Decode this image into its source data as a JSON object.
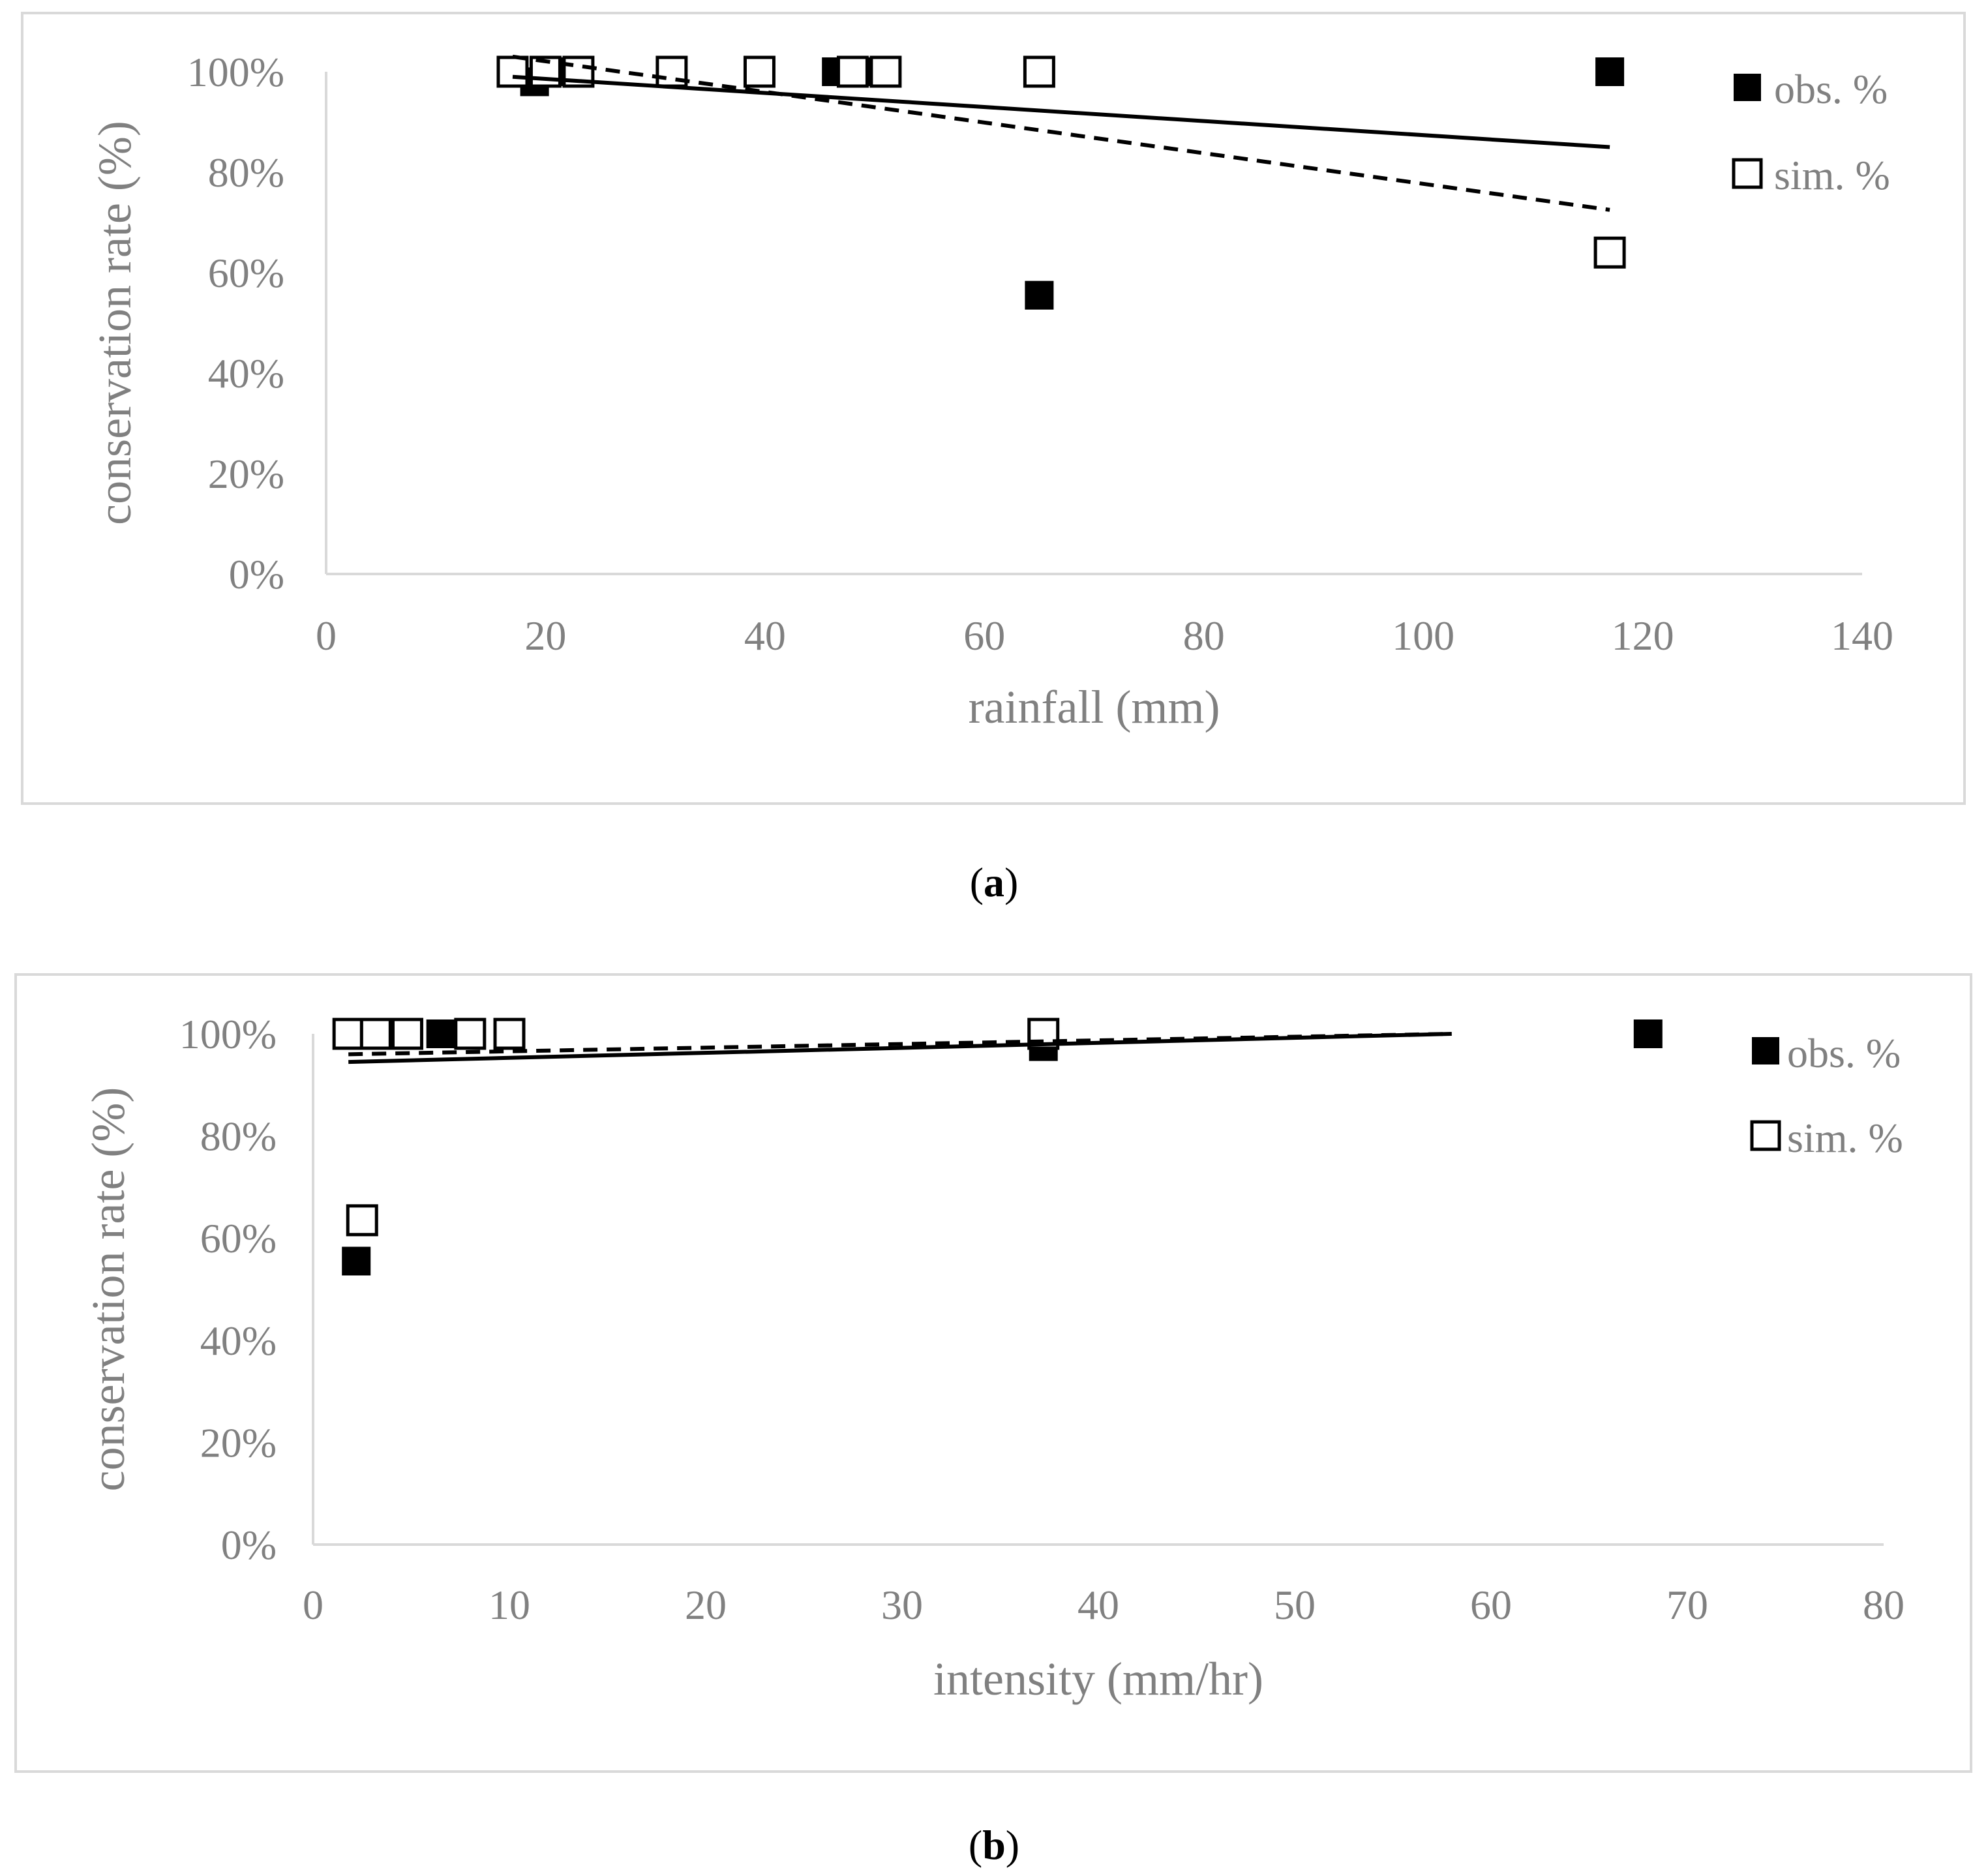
{
  "chart_data": [
    {
      "type": "scatter",
      "caption": "a",
      "xlabel": "rainfall (mm)",
      "ylabel": "conservation rate (%)",
      "xlim": [
        0,
        140
      ],
      "ylim": [
        0,
        100
      ],
      "xticks": [
        "0",
        "20",
        "40",
        "60",
        "80",
        "100",
        "120",
        "140"
      ],
      "yticks": [
        "0%",
        "20%",
        "40%",
        "60%",
        "80%",
        "100%"
      ],
      "legend_position": "right",
      "series": [
        {
          "name": "obs. %",
          "marker": "filled-square",
          "points": [
            [
              17,
              100
            ],
            [
              19,
              98
            ],
            [
              20,
              100
            ],
            [
              21,
              100
            ],
            [
              22,
              100
            ],
            [
              23,
              100
            ],
            [
              31.5,
              100
            ],
            [
              39.5,
              100
            ],
            [
              46.5,
              100
            ],
            [
              48,
              100
            ],
            [
              49.5,
              100
            ],
            [
              51,
              100
            ],
            [
              65,
              55.5
            ],
            [
              117,
              100
            ]
          ],
          "trendline": {
            "style": "solid",
            "from": [
              17,
              99
            ],
            "to": [
              117,
              85
            ]
          }
        },
        {
          "name": "sim. %",
          "marker": "open-square",
          "points": [
            [
              17,
              100
            ],
            [
              20,
              100
            ],
            [
              23,
              100
            ],
            [
              31.5,
              100
            ],
            [
              39.5,
              100
            ],
            [
              48,
              100
            ],
            [
              51,
              100
            ],
            [
              65,
              100
            ],
            [
              117,
              64
            ]
          ],
          "trendline": {
            "style": "dashed",
            "from": [
              17,
              103
            ],
            "to": [
              117,
              72.5
            ]
          }
        }
      ]
    },
    {
      "type": "scatter",
      "caption": "b",
      "xlabel": "intensity (mm/hr)",
      "ylabel": "conservation rate (%)",
      "xlim": [
        0,
        80
      ],
      "ylim": [
        0,
        100
      ],
      "xticks": [
        "0",
        "10",
        "20",
        "30",
        "40",
        "50",
        "60",
        "70",
        "80"
      ],
      "yticks": [
        "0%",
        "20%",
        "40%",
        "60%",
        "80%",
        "100%"
      ],
      "legend_position": "right",
      "series": [
        {
          "name": "obs. %",
          "marker": "filled-square",
          "points": [
            [
              1.8,
              100
            ],
            [
              2.5,
              100
            ],
            [
              3.2,
              100
            ],
            [
              4.0,
              100
            ],
            [
              4.8,
              100
            ],
            [
              6.5,
              100
            ],
            [
              8.0,
              100
            ],
            [
              10.0,
              100
            ],
            [
              37.2,
              97.5
            ],
            [
              2.2,
              55.5
            ],
            [
              68,
              100
            ]
          ],
          "trendline": {
            "style": "solid",
            "from": [
              1.8,
              94.5
            ],
            "to": [
              58,
              100
            ]
          }
        },
        {
          "name": "sim. %",
          "marker": "open-square",
          "points": [
            [
              1.8,
              100
            ],
            [
              3.2,
              100
            ],
            [
              4.8,
              100
            ],
            [
              8.0,
              100
            ],
            [
              10.0,
              100
            ],
            [
              37.2,
              100
            ],
            [
              2.5,
              63.5
            ]
          ],
          "trendline": {
            "style": "dashed",
            "from": [
              1.8,
              96
            ],
            "to": [
              58,
              100
            ]
          }
        }
      ]
    }
  ],
  "captions": {
    "a_open": "(",
    "a_letter": "a",
    "a_close": ")",
    "b_open": "(",
    "b_letter": "b",
    "b_close": ")"
  },
  "colors": {
    "axis": "#d9d9d9",
    "text": "#808080",
    "marker": "#000000",
    "frame": "#d9d9d9"
  }
}
